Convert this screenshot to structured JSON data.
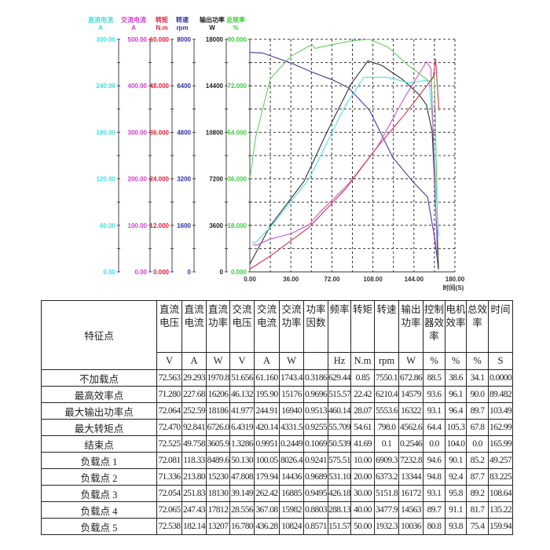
{
  "chart_data": {
    "type": "line",
    "xlabel": "时间(S)",
    "xlim": [
      0,
      180
    ],
    "xticks": [
      "0.00",
      "36.00",
      "72.00",
      "108.00",
      "144.00",
      "180.00"
    ],
    "grid": true,
    "axes": [
      {
        "id": "dc_current",
        "name": "直流电流",
        "unit": "A",
        "color": "#3fdede",
        "range": [
          0,
          300
        ],
        "ticks": [
          "0.00",
          "60.00",
          "120.00",
          "180.00",
          "240.00",
          "300.00"
        ]
      },
      {
        "id": "ac_current",
        "name": "交流电流",
        "unit": "A",
        "color": "#d23cd2",
        "range": [
          0,
          500
        ],
        "ticks": [
          "0.00",
          "100.00",
          "200.00",
          "300.00",
          "400.00",
          "500.00"
        ]
      },
      {
        "id": "torque",
        "name": "转矩",
        "unit": "N.m",
        "color": "#e0203c",
        "range": [
          0,
          60
        ],
        "ticks": [
          "0.000",
          "12.000",
          "24.000",
          "36.000",
          "48.000",
          "60.000"
        ]
      },
      {
        "id": "speed",
        "name": "转速",
        "unit": "rpm",
        "color": "#3030a8",
        "range": [
          0,
          8000
        ],
        "ticks": [
          "0",
          "1600",
          "3200",
          "4800",
          "6400",
          "8000"
        ]
      },
      {
        "id": "output_power",
        "name": "输出功率",
        "unit": "W",
        "color": "#222222",
        "range": [
          0,
          18000
        ],
        "ticks": [
          "0",
          "3600",
          "7200",
          "10800",
          "14400",
          "18000"
        ]
      },
      {
        "id": "efficiency",
        "name": "总效率",
        "unit": "%",
        "color": "#3ccc3c",
        "range": [
          0,
          90
        ],
        "ticks": [
          "0.000",
          "18.000",
          "36.000",
          "54.000",
          "72.000",
          "90.000"
        ]
      }
    ],
    "series": [
      {
        "name": "总效率",
        "axis": "efficiency",
        "color": "#5fd05f",
        "points": [
          [
            0,
            36
          ],
          [
            5,
            52
          ],
          [
            11,
            62.5
          ],
          [
            18,
            74.8
          ],
          [
            36,
            83.4
          ],
          [
            54.5,
            88
          ],
          [
            57,
            86.5
          ],
          [
            72.8,
            88
          ],
          [
            91,
            89.5
          ],
          [
            105,
            90
          ],
          [
            121,
            87
          ],
          [
            139,
            80
          ],
          [
            157.6,
            73.7
          ],
          [
            162,
            76
          ],
          [
            165.6,
            1.5
          ]
        ]
      },
      {
        "name": "转速",
        "axis": "speed",
        "color": "#3a3aa0",
        "points": [
          [
            0,
            7548
          ],
          [
            11,
            7530
          ],
          [
            36,
            7187
          ],
          [
            54.5,
            6870
          ],
          [
            72.8,
            6600
          ],
          [
            86.6,
            6330
          ],
          [
            105,
            5560
          ],
          [
            125.5,
            3930
          ],
          [
            143.8,
            3070
          ],
          [
            156,
            2576
          ],
          [
            162,
            1220
          ],
          [
            165.6,
            90
          ]
        ]
      },
      {
        "name": "输出功率",
        "axis": "output_power",
        "color": "#303030",
        "points": [
          [
            0,
            610
          ],
          [
            17.9,
            3560
          ],
          [
            47.6,
            7017
          ],
          [
            68,
            10881
          ],
          [
            88.8,
            14542
          ],
          [
            103.7,
            16332
          ],
          [
            116,
            15966
          ],
          [
            134.6,
            14847
          ],
          [
            148.4,
            13729
          ],
          [
            155,
            12915
          ],
          [
            160,
            10881
          ],
          [
            165.6,
            200
          ]
        ]
      },
      {
        "name": "直流电流",
        "axis": "dc_current",
        "color": "#4ee0e0",
        "points": [
          [
            2.3,
            39
          ],
          [
            4.5,
            37
          ],
          [
            17.9,
            57.6
          ],
          [
            52,
            120
          ],
          [
            84,
            215
          ],
          [
            100,
            251
          ],
          [
            121,
            251
          ],
          [
            139,
            244
          ],
          [
            155,
            247
          ],
          [
            157.5,
            243
          ],
          [
            161,
            181
          ],
          [
            165.6,
            46
          ]
        ]
      },
      {
        "name": "交流电流",
        "axis": "ac_current",
        "color": "#cc55cc",
        "points": [
          [
            2.3,
            59
          ],
          [
            5.5,
            57
          ],
          [
            17.9,
            70.6
          ],
          [
            36,
            82
          ],
          [
            52,
            101.7
          ],
          [
            61,
            127
          ],
          [
            86.6,
            189
          ],
          [
            111.8,
            268
          ],
          [
            134.6,
            370
          ],
          [
            155,
            452
          ],
          [
            159,
            437
          ],
          [
            164.7,
            25
          ]
        ]
      },
      {
        "name": "转矩",
        "axis": "torque",
        "color": "#d8304e",
        "points": [
          [
            0,
            0.7
          ],
          [
            17.9,
            4.1
          ],
          [
            52,
            11.5
          ],
          [
            84,
            21.4
          ],
          [
            111.8,
            32.2
          ],
          [
            137,
            41
          ],
          [
            161,
            50.2
          ],
          [
            163,
            54.9
          ],
          [
            166,
            41.7
          ]
        ]
      }
    ]
  },
  "table": {
    "corner": "特征点",
    "headers": [
      "直流电压",
      "直流电流",
      "直流功率",
      "交流电压",
      "交流电流",
      "交流功率",
      "功率因数",
      "频率",
      "转矩",
      "转速",
      "输出功率",
      "控制器效率",
      "电机效率",
      "总效率",
      "时间"
    ],
    "units": [
      "V",
      "A",
      "W",
      "V",
      "A",
      "W",
      "",
      "Hz",
      "N.m",
      "rpm",
      "W",
      "%",
      "%",
      "%",
      "S"
    ],
    "rows": [
      {
        "name": "不加载点",
        "values": [
          "72.563",
          "29.293",
          "1970.8",
          "51.656",
          "61.160",
          "1743.4",
          "0.3186",
          "629.44",
          "0.85",
          "7550.1",
          "672.86",
          "88.5",
          "38.6",
          "34.1",
          "0.0000"
        ]
      },
      {
        "name": "最高效率点",
        "values": [
          "71.280",
          "227.68",
          "16206",
          "46.132",
          "195.90",
          "15176",
          "0.9696",
          "515.57",
          "22.42",
          "6210.4",
          "14579",
          "93.6",
          "96.1",
          "90.0",
          "89.482"
        ]
      },
      {
        "name": "最大输出功率点",
        "values": [
          "72.064",
          "252.59",
          "18186",
          "41.977",
          "244.91",
          "16940",
          "0.9513",
          "460.14",
          "28.07",
          "5553.6",
          "16322",
          "93.1",
          "96.4",
          "89.7",
          "103.49"
        ]
      },
      {
        "name": "最大转矩点",
        "values": [
          "72.470",
          "92.841",
          "6726.0",
          "6.4319",
          "420.14",
          "4331.5",
          "0.9255",
          "55.709",
          "54.61",
          "798.0",
          "4562.6",
          "64.4",
          "105.3",
          "67.8",
          "162.99"
        ]
      },
      {
        "name": "结束点",
        "values": [
          "72.525",
          "49.758",
          "3605.9",
          "1.3286",
          "0.9951",
          "0.2449",
          "0.1069",
          "50.539",
          "41.69",
          "0.1",
          "0.2546",
          "0.0",
          "104.0",
          "0.0",
          "165.99"
        ]
      },
      {
        "name": "负载点 1",
        "values": [
          "72.081",
          "118.33",
          "8489.6",
          "50.130",
          "100.05",
          "8026.4",
          "0.9241",
          "575.51",
          "10.00",
          "6909.3",
          "7232.8",
          "94.6",
          "90.1",
          "85.2",
          "49.257"
        ]
      },
      {
        "name": "负载点 2",
        "values": [
          "71.336",
          "213.80",
          "15230",
          "47.808",
          "179.94",
          "14436",
          "0.9689",
          "531.10",
          "20.00",
          "6373.2",
          "13344",
          "94.8",
          "92.4",
          "87.7",
          "83.225"
        ]
      },
      {
        "name": "负载点 3",
        "values": [
          "72.054",
          "251.83",
          "18130",
          "39.149",
          "262.42",
          "16885",
          "0.9495",
          "426.18",
          "30.00",
          "5151.8",
          "16172",
          "93.1",
          "95.8",
          "89.2",
          "108.64"
        ]
      },
      {
        "name": "负载点 4",
        "values": [
          "72.065",
          "247.43",
          "17812",
          "28.556",
          "367.08",
          "15982",
          "0.8803",
          "288.13",
          "40.00",
          "3477.9",
          "14563",
          "89.7",
          "91.1",
          "81.7",
          "135.22"
        ]
      },
      {
        "name": "负载点 5",
        "values": [
          "72.538",
          "182.14",
          "13207",
          "16.780",
          "436.28",
          "10824",
          "0.8571",
          "151.57",
          "50.00",
          "1932.3",
          "10036",
          "80.8",
          "93.8",
          "75.4",
          "159.94"
        ]
      }
    ]
  }
}
